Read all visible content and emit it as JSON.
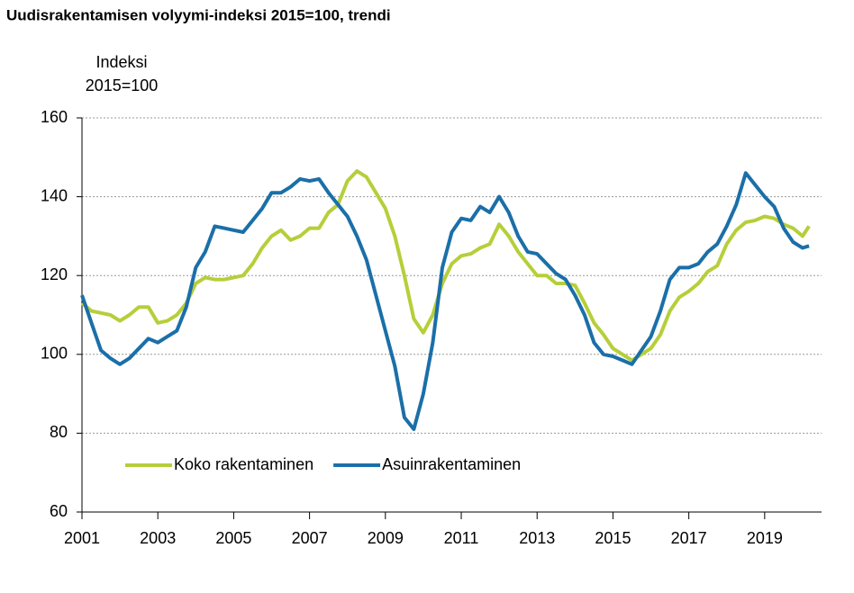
{
  "chart_data": {
    "type": "line",
    "title": "Uudisrakentamisen volyymi-indeksi 2015=100, trendi",
    "ylabel": [
      "Indeksi",
      "2015=100"
    ],
    "x": [
      2001,
      2001.25,
      2001.5,
      2001.75,
      2002,
      2002.25,
      2002.5,
      2002.75,
      2003,
      2003.25,
      2003.5,
      2003.75,
      2004,
      2004.25,
      2004.5,
      2004.75,
      2005,
      2005.25,
      2005.5,
      2005.75,
      2006,
      2006.25,
      2006.5,
      2006.75,
      2007,
      2007.25,
      2007.5,
      2007.75,
      2008,
      2008.25,
      2008.5,
      2008.75,
      2009,
      2009.25,
      2009.5,
      2009.75,
      2010,
      2010.25,
      2010.5,
      2010.75,
      2011,
      2011.25,
      2011.5,
      2011.75,
      2012,
      2012.25,
      2012.5,
      2012.75,
      2013,
      2013.25,
      2013.5,
      2013.75,
      2014,
      2014.25,
      2014.5,
      2014.75,
      2015,
      2015.25,
      2015.5,
      2015.75,
      2016,
      2016.25,
      2016.5,
      2016.75,
      2017,
      2017.25,
      2017.5,
      2017.75,
      2018,
      2018.25,
      2018.5,
      2018.75,
      2019,
      2019.25,
      2019.5,
      2019.75,
      2020,
      2020.17
    ],
    "series": [
      {
        "name": "Koko rakentaminen",
        "color": "#b5cf3a",
        "values": [
          113,
          111,
          110.5,
          110,
          108.5,
          110,
          112,
          112,
          108,
          108.5,
          110,
          113,
          118,
          119.5,
          119,
          119,
          119.5,
          120,
          123,
          127,
          130,
          131.5,
          129,
          130,
          132,
          132,
          136,
          138,
          144,
          146.5,
          145,
          141,
          137,
          130,
          120,
          109,
          105.5,
          110,
          118,
          123,
          125,
          125.5,
          127,
          128,
          133,
          130,
          126,
          123,
          120,
          120,
          118,
          118,
          117.5,
          113,
          108,
          105,
          101.5,
          100,
          98.5,
          100,
          101.5,
          105,
          111,
          114.5,
          116,
          118,
          121,
          122.5,
          128,
          131.5,
          133.5,
          134,
          135,
          134.5,
          133,
          132,
          130,
          132.5
        ]
      },
      {
        "name": "Asuinrakentaminen",
        "color": "#1b6fa8",
        "values": [
          115,
          108,
          101,
          99,
          97.5,
          99,
          101.5,
          104,
          103,
          104.5,
          106,
          112,
          122,
          126,
          132.5,
          132,
          131.5,
          131,
          134,
          137,
          141,
          141,
          142.5,
          144.5,
          144,
          144.5,
          141,
          138,
          135,
          130,
          124,
          115,
          106,
          97,
          84,
          81,
          90,
          103,
          122,
          131,
          134.5,
          134,
          137.5,
          136,
          140,
          136,
          130,
          126,
          125.5,
          123,
          120.5,
          119,
          115,
          110,
          103,
          100,
          99.5,
          98.5,
          97.5,
          101,
          104.5,
          111,
          119,
          122,
          122,
          123,
          126,
          128,
          132.5,
          138,
          146,
          143,
          140,
          137.5,
          132,
          128.5,
          127,
          127.5
        ]
      }
    ],
    "xlim": [
      2001,
      2020.5
    ],
    "xticks": [
      2001,
      2003,
      2005,
      2007,
      2009,
      2011,
      2013,
      2015,
      2017,
      2019
    ],
    "ylim": [
      60,
      160
    ],
    "yticks": [
      60,
      80,
      100,
      120,
      140,
      160
    ],
    "grid": true,
    "legend": "lower left"
  }
}
